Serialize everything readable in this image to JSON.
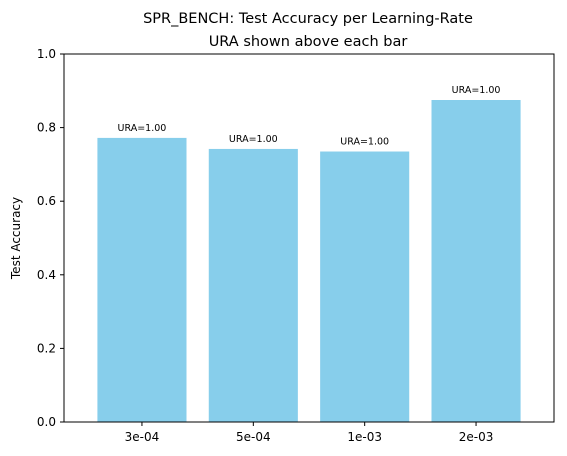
{
  "chart_data": {
    "type": "bar",
    "title": "SPR_BENCH: Test Accuracy per Learning-Rate",
    "subtitle": "URA shown above each bar",
    "xlabel": "",
    "ylabel": "Test Accuracy",
    "categories": [
      "3e-04",
      "5e-04",
      "1e-03",
      "2e-03"
    ],
    "values": [
      0.772,
      0.742,
      0.735,
      0.875
    ],
    "annotations": [
      "URA=1.00",
      "URA=1.00",
      "URA=1.00",
      "URA=1.00"
    ],
    "ylim": [
      0,
      1.0
    ],
    "yticks": [
      0.0,
      0.2,
      0.4,
      0.6,
      0.8,
      1.0
    ],
    "ytick_labels": [
      "0.0",
      "0.2",
      "0.4",
      "0.6",
      "0.8",
      "1.0"
    ],
    "grid": false,
    "bar_color": "#87CEEB"
  }
}
